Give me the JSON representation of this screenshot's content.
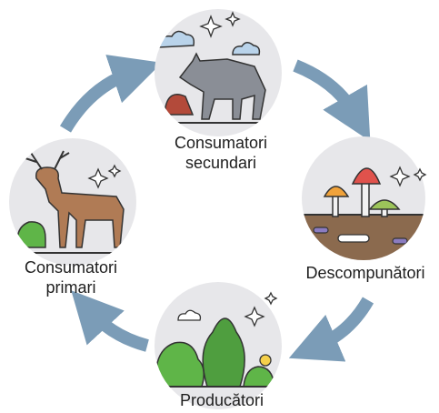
{
  "nodes": [
    {
      "label": [
        "Consumatori",
        "secundari"
      ]
    },
    {
      "label": [
        "Descompunători"
      ]
    },
    {
      "label": [
        "Producători"
      ]
    },
    {
      "label": [
        "Consumatori",
        "primari"
      ]
    }
  ]
}
